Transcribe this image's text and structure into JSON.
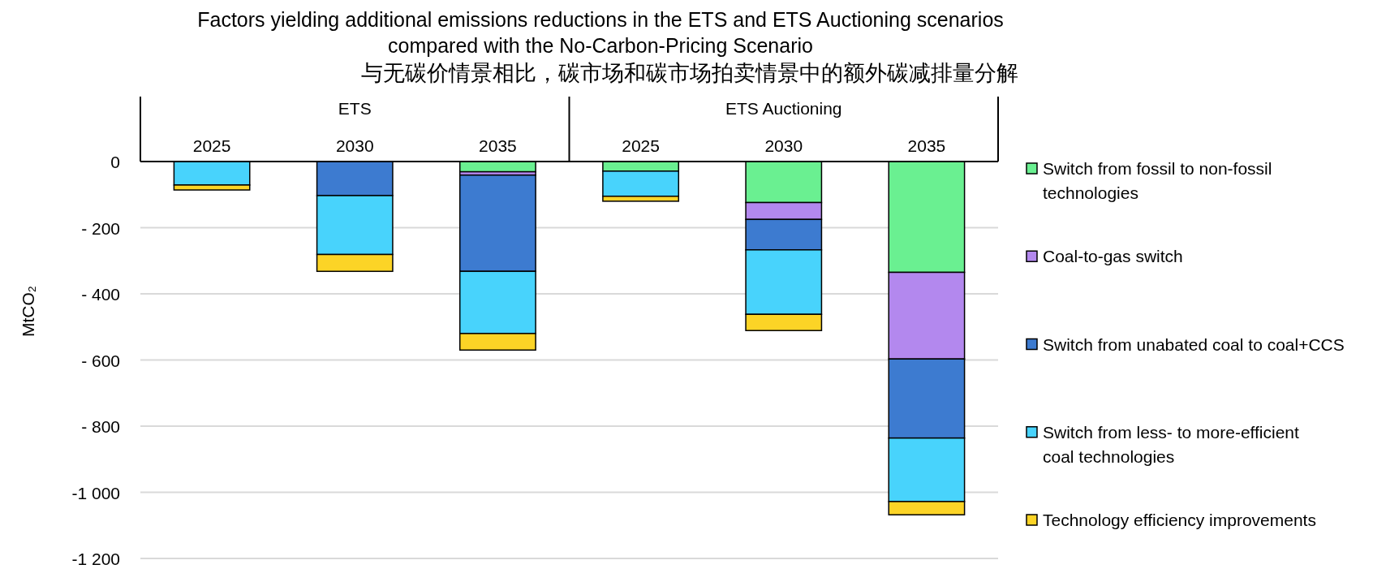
{
  "chart_data": {
    "type": "bar",
    "title": "Factors yielding additional emissions reductions in the ETS and ETS Auctioning scenarios\ncompared with the No-Carbon-Pricing Scenario",
    "subtitle": "与无碳价情景相比，碳市场和碳市场拍卖情景中的额外碳减排量分解",
    "ylabel": "MtCO₂",
    "categories": [
      "2025",
      "2030",
      "2035",
      "2025",
      "2030",
      "2035"
    ],
    "annotations": [
      "ETS",
      "ETS Auctioning"
    ],
    "stacked": true,
    "series": [
      {
        "name": "Switch from fossil to non-fossil technologies",
        "color": "#6af091",
        "values": [
          0,
          0,
          -31,
          -29,
          -124,
          -335
        ]
      },
      {
        "name": "Coal-to-gas switch",
        "color": "#b388ee",
        "values": [
          0,
          0,
          -10,
          0,
          -51,
          -262
        ]
      },
      {
        "name": "Switch from unabated coal to coal+CCS",
        "color": "#3d7bd0",
        "values": [
          0,
          -103,
          -291,
          0,
          -92,
          -239
        ]
      },
      {
        "name": "Switch from less- to more-efficient coal technologies",
        "color": "#48d3fc",
        "values": [
          -71,
          -178,
          -188,
          -76,
          -195,
          -192
        ]
      },
      {
        "name": "Technology efficiency improvements",
        "color": "#fcd426",
        "values": [
          -15,
          -51,
          -50,
          -15,
          -49,
          -40
        ]
      }
    ],
    "ylim": [
      -1200,
      0
    ],
    "yticks": [
      0,
      {
        "value": -200,
        "label": "- 200"
      },
      {
        "value": -400,
        "label": "- 400"
      },
      {
        "value": -600,
        "label": "- 600"
      },
      {
        "value": -800,
        "label": "- 800"
      },
      {
        "value": -1000,
        "label": "-1 000"
      },
      {
        "value": -1200,
        "label": "-1 200"
      }
    ],
    "grid": "y",
    "legend": "right"
  }
}
